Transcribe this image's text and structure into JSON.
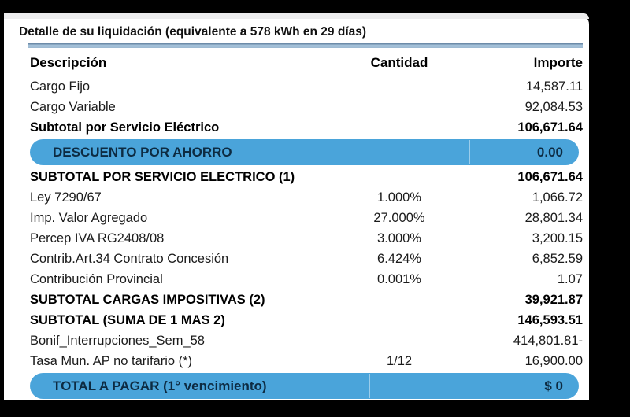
{
  "header": {
    "title": "Detalle de su liquidación (equivalente a 578 kWh en 29 días)"
  },
  "table": {
    "headers": {
      "description": "Descripción",
      "quantity": "Cantidad",
      "amount": "Importe"
    },
    "rows": [
      {
        "type": "item",
        "emphasis": "normal",
        "description": "Cargo Fijo",
        "quantity": "",
        "amount": "14,587.11"
      },
      {
        "type": "item",
        "emphasis": "normal",
        "description": "Cargo Variable",
        "quantity": "",
        "amount": "92,084.53"
      },
      {
        "type": "item",
        "emphasis": "bold",
        "description": "Subtotal por Servicio Eléctrico",
        "quantity": "",
        "amount": "106,671.64"
      },
      {
        "type": "band",
        "emphasis": "band",
        "description": "DESCUENTO POR AHORRO",
        "quantity": "",
        "amount": "0.00"
      },
      {
        "type": "item",
        "emphasis": "bold",
        "description": "SUBTOTAL POR SERVICIO ELECTRICO (1)",
        "quantity": "",
        "amount": "106,671.64"
      },
      {
        "type": "item",
        "emphasis": "normal",
        "description": "Ley 7290/67",
        "quantity": "1.000%",
        "amount": "1,066.72"
      },
      {
        "type": "item",
        "emphasis": "normal",
        "description": "Imp. Valor Agregado",
        "quantity": "27.000%",
        "amount": "28,801.34"
      },
      {
        "type": "item",
        "emphasis": "normal",
        "description": "Percep IVA RG2408/08",
        "quantity": "3.000%",
        "amount": "3,200.15"
      },
      {
        "type": "item",
        "emphasis": "normal",
        "description": "Contrib.Art.34 Contrato Concesión",
        "quantity": "6.424%",
        "amount": "6,852.59"
      },
      {
        "type": "item",
        "emphasis": "normal",
        "description": "Contribución Provincial",
        "quantity": "0.001%",
        "amount": "1.07"
      },
      {
        "type": "item",
        "emphasis": "bold",
        "description": "SUBTOTAL CARGAS IMPOSITIVAS (2)",
        "quantity": "",
        "amount": "39,921.87"
      },
      {
        "type": "item",
        "emphasis": "bold",
        "description": "SUBTOTAL (SUMA DE 1 MAS 2)",
        "quantity": "",
        "amount": "146,593.51"
      },
      {
        "type": "item",
        "emphasis": "normal",
        "description": "Bonif_Interrupciones_Sem_58",
        "quantity": "",
        "amount": "414,801.81-"
      },
      {
        "type": "item",
        "emphasis": "normal",
        "description": "Tasa Mun. AP no tarifario (*)",
        "quantity": "1/12",
        "amount": "16,900.00"
      },
      {
        "type": "band",
        "emphasis": "band",
        "description": "TOTAL A PAGAR (1° vencimiento)",
        "quantity": "",
        "amount": "$ 0"
      }
    ]
  },
  "colors": {
    "band_blue": "#4AA4DA",
    "band_text": "#0D2B42",
    "rule_blue": "#A9C6DD"
  }
}
